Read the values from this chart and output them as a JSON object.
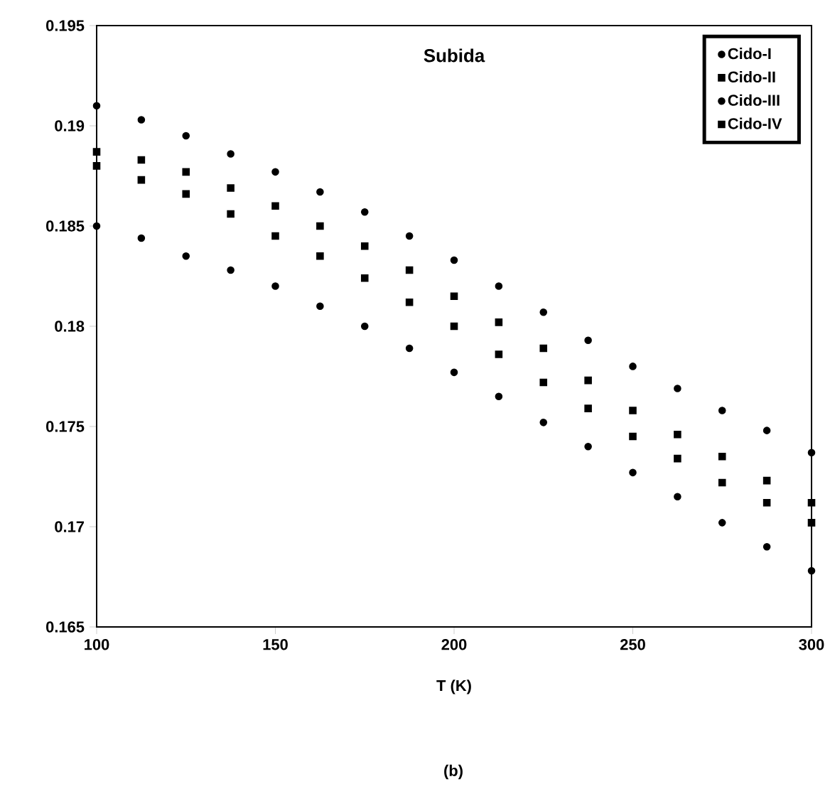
{
  "chart_data": {
    "type": "scatter",
    "title": "Subida",
    "xlabel": "T (K)",
    "annotations": [
      "(b)"
    ],
    "xlim": [
      100,
      300
    ],
    "xticks": [
      100,
      150,
      200,
      250,
      300
    ],
    "ylim": [
      0.165,
      0.195
    ],
    "yticks": [
      0.165,
      0.17,
      0.175,
      0.18,
      0.185,
      0.19,
      0.195
    ],
    "x": [
      100,
      112.5,
      125,
      137.5,
      150,
      162.5,
      175,
      187.5,
      200,
      212.5,
      225,
      237.5,
      250,
      262.5,
      275,
      287.5,
      300
    ],
    "series": [
      {
        "name": "Cido-I",
        "color": "#000000",
        "marker": "circle",
        "values": [
          0.185,
          0.1844,
          0.1835,
          0.1828,
          0.182,
          0.181,
          0.18,
          0.1789,
          0.1777,
          0.1765,
          0.1752,
          0.174,
          0.1727,
          0.1715,
          0.1702,
          0.169,
          0.1678
        ]
      },
      {
        "name": "Cido-II",
        "color": "#000000",
        "marker": "square",
        "values": [
          0.1887,
          0.1883,
          0.1877,
          0.1869,
          0.186,
          0.185,
          0.184,
          0.1828,
          0.1815,
          0.1802,
          0.1789,
          0.1773,
          0.1758,
          0.1746,
          0.1735,
          0.1723,
          0.1712
        ]
      },
      {
        "name": "Cido-III",
        "color": "#000000",
        "marker": "circle",
        "values": [
          0.191,
          0.1903,
          0.1895,
          0.1886,
          0.1877,
          0.1867,
          0.1857,
          0.1845,
          0.1833,
          0.182,
          0.1807,
          0.1793,
          0.178,
          0.1769,
          0.1758,
          0.1748,
          0.1737
        ]
      },
      {
        "name": "Cido-IV",
        "color": "#000000",
        "marker": "square",
        "values": [
          0.188,
          0.1873,
          0.1866,
          0.1856,
          0.1845,
          0.1835,
          0.1824,
          0.1812,
          0.18,
          0.1786,
          0.1772,
          0.1759,
          0.1745,
          0.1734,
          0.1722,
          0.1712,
          0.1702
        ]
      }
    ],
    "legend": "top right",
    "grid": false
  }
}
